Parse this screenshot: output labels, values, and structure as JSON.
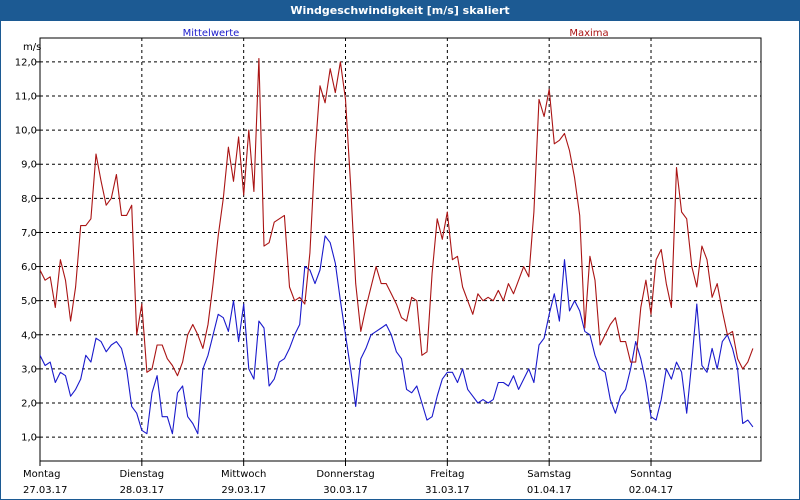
{
  "window": {
    "title": "Windgeschwindigkeit [m/s] skaliert"
  },
  "colors": {
    "mean": "#1a1acc",
    "max": "#aa1414",
    "titlebar": "#1c5a93"
  },
  "chart_data": {
    "type": "line",
    "title": "Windgeschwindigkeit [m/s] skaliert",
    "ylabel": "m/s",
    "ylim": [
      0.3,
      12.7
    ],
    "yticks": [
      1.0,
      2.0,
      3.0,
      4.0,
      5.0,
      6.0,
      7.0,
      8.0,
      9.0,
      10.0,
      11.0,
      12.0
    ],
    "ytick_labels": [
      "1,0",
      "2,0",
      "3,0",
      "4,0",
      "5,0",
      "6,0",
      "7,0",
      "8,0",
      "9,0",
      "10,0",
      "11,0",
      "12,0"
    ],
    "xlim": [
      0,
      7.08
    ],
    "grid": true,
    "days": [
      {
        "weekday": "Montag",
        "date": "27.03.17"
      },
      {
        "weekday": "Dienstag",
        "date": "28.03.17"
      },
      {
        "weekday": "Mittwoch",
        "date": "29.03.17"
      },
      {
        "weekday": "Donnerstag",
        "date": "30.03.17"
      },
      {
        "weekday": "Freitag",
        "date": "31.03.17"
      },
      {
        "weekday": "Samstag",
        "date": "01.04.17"
      },
      {
        "weekday": "Sonntag",
        "date": "02.04.17"
      }
    ],
    "series": [
      {
        "name": "Mittelwerte",
        "color": "#1a1acc",
        "points": [
          [
            0.0,
            3.4
          ],
          [
            0.05,
            3.1
          ],
          [
            0.1,
            3.2
          ],
          [
            0.15,
            2.6
          ],
          [
            0.2,
            2.9
          ],
          [
            0.25,
            2.8
          ],
          [
            0.3,
            2.2
          ],
          [
            0.35,
            2.4
          ],
          [
            0.4,
            2.7
          ],
          [
            0.45,
            3.4
          ],
          [
            0.5,
            3.2
          ],
          [
            0.55,
            3.9
          ],
          [
            0.6,
            3.8
          ],
          [
            0.65,
            3.5
          ],
          [
            0.7,
            3.7
          ],
          [
            0.75,
            3.8
          ],
          [
            0.8,
            3.6
          ],
          [
            0.85,
            3.0
          ],
          [
            0.9,
            1.9
          ],
          [
            0.95,
            1.7
          ],
          [
            1.0,
            1.2
          ],
          [
            1.05,
            1.1
          ],
          [
            1.1,
            2.3
          ],
          [
            1.15,
            2.8
          ],
          [
            1.2,
            1.6
          ],
          [
            1.25,
            1.6
          ],
          [
            1.3,
            1.1
          ],
          [
            1.35,
            2.3
          ],
          [
            1.4,
            2.5
          ],
          [
            1.45,
            1.6
          ],
          [
            1.5,
            1.4
          ],
          [
            1.55,
            1.1
          ],
          [
            1.6,
            3.0
          ],
          [
            1.65,
            3.4
          ],
          [
            1.7,
            4.0
          ],
          [
            1.75,
            4.6
          ],
          [
            1.8,
            4.5
          ],
          [
            1.85,
            4.1
          ],
          [
            1.9,
            5.0
          ],
          [
            1.95,
            3.8
          ],
          [
            2.0,
            4.9
          ],
          [
            2.05,
            3.0
          ],
          [
            2.1,
            2.7
          ],
          [
            2.15,
            4.4
          ],
          [
            2.2,
            4.2
          ],
          [
            2.25,
            2.5
          ],
          [
            2.3,
            2.7
          ],
          [
            2.35,
            3.2
          ],
          [
            2.4,
            3.3
          ],
          [
            2.45,
            3.6
          ],
          [
            2.5,
            4.0
          ],
          [
            2.55,
            4.3
          ],
          [
            2.6,
            6.0
          ],
          [
            2.65,
            5.9
          ],
          [
            2.7,
            5.5
          ],
          [
            2.75,
            5.9
          ],
          [
            2.8,
            6.9
          ],
          [
            2.85,
            6.7
          ],
          [
            2.9,
            6.1
          ],
          [
            2.95,
            5.0
          ],
          [
            3.0,
            4.0
          ],
          [
            3.05,
            3.0
          ],
          [
            3.1,
            1.9
          ],
          [
            3.15,
            3.3
          ],
          [
            3.2,
            3.6
          ],
          [
            3.25,
            4.0
          ],
          [
            3.3,
            4.1
          ],
          [
            3.35,
            4.2
          ],
          [
            3.4,
            4.3
          ],
          [
            3.45,
            4.0
          ],
          [
            3.5,
            3.5
          ],
          [
            3.55,
            3.3
          ],
          [
            3.6,
            2.4
          ],
          [
            3.65,
            2.3
          ],
          [
            3.7,
            2.5
          ],
          [
            3.75,
            2.0
          ],
          [
            3.8,
            1.5
          ],
          [
            3.85,
            1.6
          ],
          [
            3.9,
            2.2
          ],
          [
            3.95,
            2.7
          ],
          [
            4.0,
            2.9
          ],
          [
            4.05,
            2.9
          ],
          [
            4.1,
            2.6
          ],
          [
            4.15,
            3.0
          ],
          [
            4.2,
            2.4
          ],
          [
            4.25,
            2.2
          ],
          [
            4.3,
            2.0
          ],
          [
            4.35,
            2.1
          ],
          [
            4.4,
            2.0
          ],
          [
            4.45,
            2.1
          ],
          [
            4.5,
            2.6
          ],
          [
            4.55,
            2.6
          ],
          [
            4.6,
            2.5
          ],
          [
            4.65,
            2.8
          ],
          [
            4.7,
            2.4
          ],
          [
            4.75,
            2.7
          ],
          [
            4.8,
            3.0
          ],
          [
            4.85,
            2.6
          ],
          [
            4.9,
            3.7
          ],
          [
            4.95,
            3.9
          ],
          [
            5.0,
            4.6
          ],
          [
            5.05,
            5.2
          ],
          [
            5.1,
            4.4
          ],
          [
            5.15,
            6.2
          ],
          [
            5.2,
            4.7
          ],
          [
            5.25,
            5.0
          ],
          [
            5.3,
            4.7
          ],
          [
            5.35,
            4.1
          ],
          [
            5.4,
            4.0
          ],
          [
            5.45,
            3.4
          ],
          [
            5.5,
            3.0
          ],
          [
            5.55,
            2.9
          ],
          [
            5.6,
            2.1
          ],
          [
            5.65,
            1.7
          ],
          [
            5.7,
            2.2
          ],
          [
            5.75,
            2.4
          ],
          [
            5.8,
            3.0
          ],
          [
            5.85,
            3.8
          ],
          [
            5.9,
            3.3
          ],
          [
            5.95,
            2.6
          ],
          [
            6.0,
            1.6
          ],
          [
            6.05,
            1.5
          ],
          [
            6.1,
            2.1
          ],
          [
            6.15,
            3.0
          ],
          [
            6.2,
            2.7
          ],
          [
            6.25,
            3.2
          ],
          [
            6.3,
            2.9
          ],
          [
            6.35,
            1.7
          ],
          [
            6.4,
            3.2
          ],
          [
            6.45,
            4.9
          ],
          [
            6.5,
            3.1
          ],
          [
            6.55,
            2.9
          ],
          [
            6.6,
            3.6
          ],
          [
            6.65,
            3.0
          ],
          [
            6.7,
            3.8
          ],
          [
            6.75,
            4.0
          ],
          [
            6.8,
            3.6
          ],
          [
            6.85,
            3.0
          ],
          [
            6.9,
            1.4
          ],
          [
            6.95,
            1.5
          ],
          [
            7.0,
            1.3
          ]
        ]
      },
      {
        "name": "Maxima",
        "color": "#aa1414",
        "points": [
          [
            0.0,
            5.9
          ],
          [
            0.05,
            5.6
          ],
          [
            0.1,
            5.7
          ],
          [
            0.15,
            4.8
          ],
          [
            0.2,
            6.2
          ],
          [
            0.25,
            5.6
          ],
          [
            0.3,
            4.4
          ],
          [
            0.35,
            5.4
          ],
          [
            0.4,
            7.2
          ],
          [
            0.45,
            7.2
          ],
          [
            0.5,
            7.4
          ],
          [
            0.55,
            9.3
          ],
          [
            0.6,
            8.5
          ],
          [
            0.65,
            7.8
          ],
          [
            0.7,
            8.0
          ],
          [
            0.75,
            8.7
          ],
          [
            0.8,
            7.5
          ],
          [
            0.85,
            7.5
          ],
          [
            0.9,
            7.8
          ],
          [
            0.95,
            4.0
          ],
          [
            1.0,
            4.9
          ],
          [
            1.05,
            2.9
          ],
          [
            1.1,
            3.0
          ],
          [
            1.15,
            3.7
          ],
          [
            1.2,
            3.7
          ],
          [
            1.25,
            3.3
          ],
          [
            1.3,
            3.1
          ],
          [
            1.35,
            2.8
          ],
          [
            1.4,
            3.2
          ],
          [
            1.45,
            4.0
          ],
          [
            1.5,
            4.3
          ],
          [
            1.55,
            4.0
          ],
          [
            1.6,
            3.6
          ],
          [
            1.65,
            4.3
          ],
          [
            1.7,
            5.5
          ],
          [
            1.75,
            6.9
          ],
          [
            1.8,
            8.0
          ],
          [
            1.85,
            9.5
          ],
          [
            1.9,
            8.5
          ],
          [
            1.95,
            9.8
          ],
          [
            2.0,
            8.1
          ],
          [
            2.05,
            10.0
          ],
          [
            2.1,
            8.2
          ],
          [
            2.15,
            12.1
          ],
          [
            2.2,
            6.6
          ],
          [
            2.25,
            6.7
          ],
          [
            2.3,
            7.3
          ],
          [
            2.35,
            7.4
          ],
          [
            2.4,
            7.5
          ],
          [
            2.45,
            5.4
          ],
          [
            2.5,
            5.0
          ],
          [
            2.55,
            5.1
          ],
          [
            2.6,
            4.9
          ],
          [
            2.65,
            6.4
          ],
          [
            2.7,
            9.3
          ],
          [
            2.75,
            11.3
          ],
          [
            2.8,
            10.8
          ],
          [
            2.85,
            11.8
          ],
          [
            2.9,
            11.1
          ],
          [
            2.95,
            12.0
          ],
          [
            3.0,
            10.9
          ],
          [
            3.05,
            8.4
          ],
          [
            3.1,
            5.5
          ],
          [
            3.15,
            4.1
          ],
          [
            3.2,
            4.8
          ],
          [
            3.25,
            5.4
          ],
          [
            3.3,
            6.0
          ],
          [
            3.35,
            5.5
          ],
          [
            3.4,
            5.5
          ],
          [
            3.45,
            5.2
          ],
          [
            3.5,
            4.9
          ],
          [
            3.55,
            4.5
          ],
          [
            3.6,
            4.4
          ],
          [
            3.65,
            5.1
          ],
          [
            3.7,
            5.0
          ],
          [
            3.75,
            3.4
          ],
          [
            3.8,
            3.5
          ],
          [
            3.85,
            5.8
          ],
          [
            3.9,
            7.4
          ],
          [
            3.95,
            6.8
          ],
          [
            4.0,
            7.6
          ],
          [
            4.05,
            6.2
          ],
          [
            4.1,
            6.3
          ],
          [
            4.15,
            5.4
          ],
          [
            4.2,
            5.0
          ],
          [
            4.25,
            4.6
          ],
          [
            4.3,
            5.2
          ],
          [
            4.35,
            5.0
          ],
          [
            4.4,
            5.1
          ],
          [
            4.45,
            5.0
          ],
          [
            4.5,
            5.3
          ],
          [
            4.55,
            5.0
          ],
          [
            4.6,
            5.5
          ],
          [
            4.65,
            5.2
          ],
          [
            4.7,
            5.6
          ],
          [
            4.75,
            6.0
          ],
          [
            4.8,
            5.7
          ],
          [
            4.85,
            7.6
          ],
          [
            4.9,
            10.9
          ],
          [
            4.95,
            10.4
          ],
          [
            5.0,
            11.2
          ],
          [
            5.05,
            9.6
          ],
          [
            5.1,
            9.7
          ],
          [
            5.15,
            9.9
          ],
          [
            5.2,
            9.4
          ],
          [
            5.25,
            8.6
          ],
          [
            5.3,
            7.5
          ],
          [
            5.35,
            4.2
          ],
          [
            5.4,
            6.3
          ],
          [
            5.45,
            5.6
          ],
          [
            5.5,
            3.7
          ],
          [
            5.55,
            4.0
          ],
          [
            5.6,
            4.3
          ],
          [
            5.65,
            4.5
          ],
          [
            5.7,
            3.8
          ],
          [
            5.75,
            3.8
          ],
          [
            5.8,
            3.2
          ],
          [
            5.85,
            3.2
          ],
          [
            5.9,
            4.8
          ],
          [
            5.95,
            5.6
          ],
          [
            6.0,
            4.6
          ],
          [
            6.05,
            6.2
          ],
          [
            6.1,
            6.5
          ],
          [
            6.15,
            5.5
          ],
          [
            6.2,
            4.8
          ],
          [
            6.25,
            8.9
          ],
          [
            6.3,
            7.6
          ],
          [
            6.35,
            7.4
          ],
          [
            6.4,
            6.0
          ],
          [
            6.45,
            5.4
          ],
          [
            6.5,
            6.6
          ],
          [
            6.55,
            6.2
          ],
          [
            6.6,
            5.1
          ],
          [
            6.65,
            5.5
          ],
          [
            6.7,
            4.7
          ],
          [
            6.75,
            4.0
          ],
          [
            6.8,
            4.1
          ],
          [
            6.85,
            3.3
          ],
          [
            6.9,
            3.0
          ],
          [
            6.95,
            3.2
          ],
          [
            7.0,
            3.6
          ]
        ]
      }
    ]
  }
}
